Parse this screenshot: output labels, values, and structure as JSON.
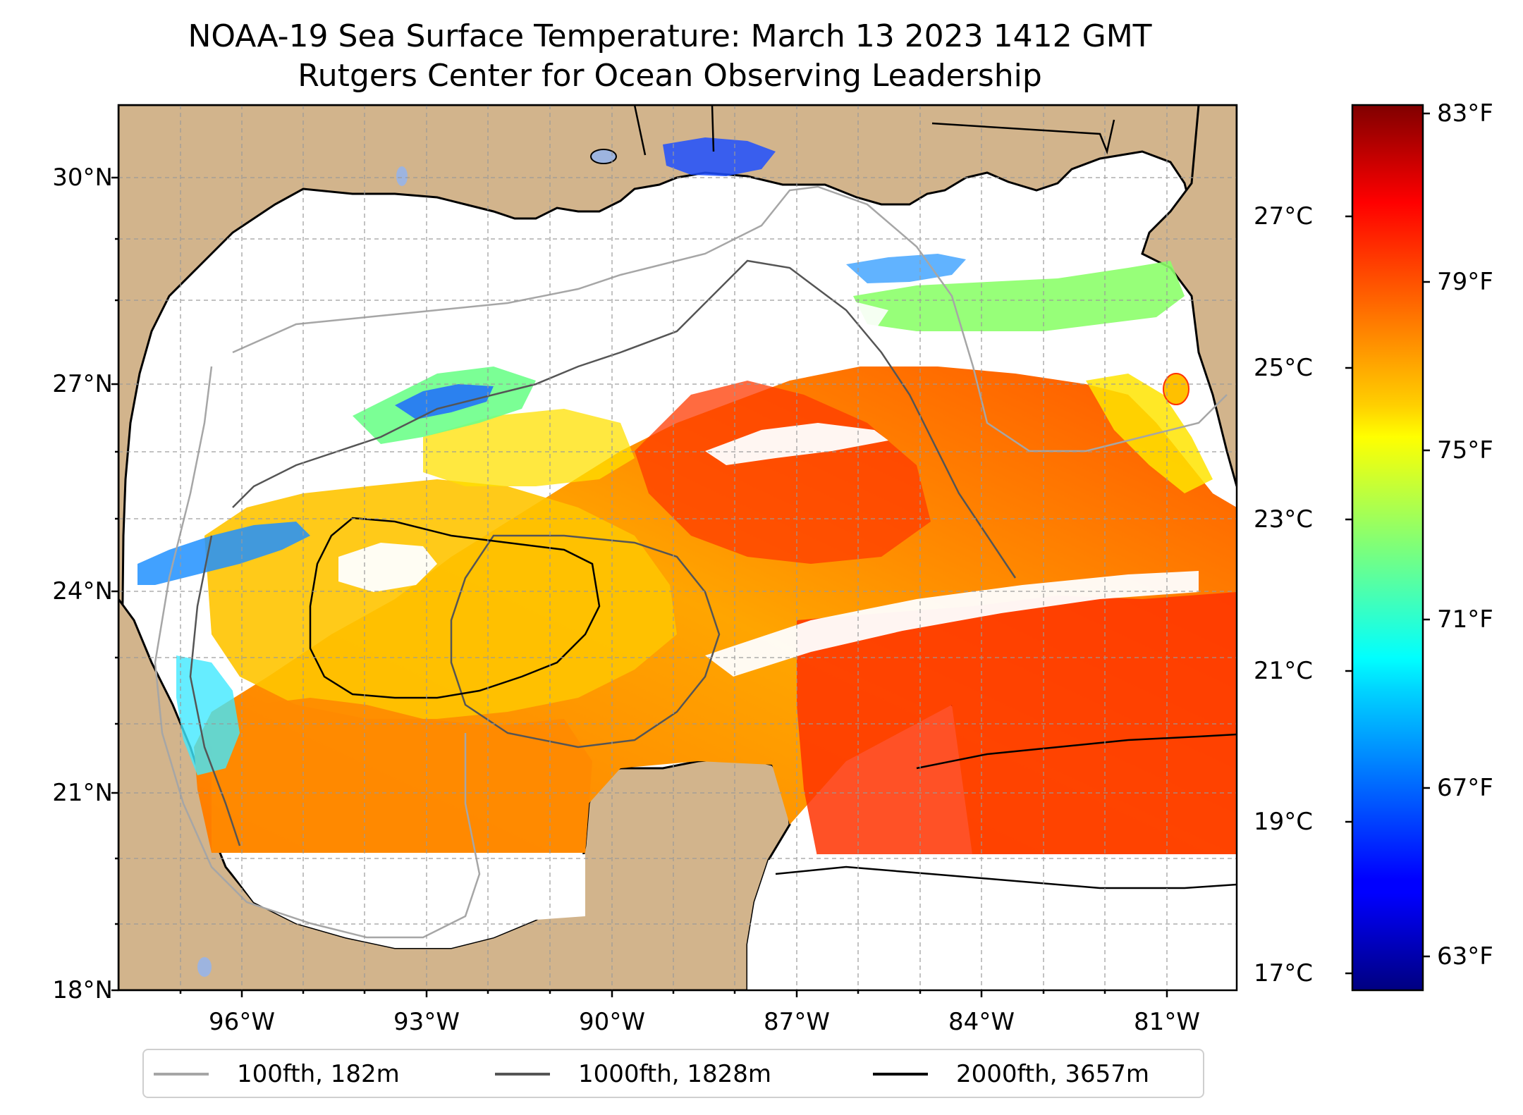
{
  "title": {
    "line1": "NOAA-19 Sea Surface Temperature: March 13 2023 1412 GMT",
    "line2": "Rutgers Center for Ocean Observing Leadership"
  },
  "axes": {
    "latitude_labels": [
      "30°N",
      "27°N",
      "24°N",
      "21°N",
      "18°N"
    ],
    "longitude_labels": [
      "96°W",
      "93°W",
      "90°W",
      "87°W",
      "84°W",
      "81°W"
    ]
  },
  "colorbar": {
    "celsius_labels": [
      "27°C",
      "25°C",
      "23°C",
      "21°C",
      "19°C",
      "17°C"
    ],
    "fahrenheit_labels": [
      "83°F",
      "79°F",
      "75°F",
      "71°F",
      "67°F",
      "63°F"
    ],
    "colormap": "jet",
    "range_celsius": [
      16.8,
      28.3
    ]
  },
  "legend": {
    "items": [
      {
        "label": "100fth, 182m",
        "color": "#a6a6a6"
      },
      {
        "label": "1000fth, 1828m",
        "color": "#555555"
      },
      {
        "label": "2000fth, 3657m",
        "color": "#000000"
      }
    ]
  },
  "colors": {
    "land": "#d2b48c",
    "cloud_no_data": "#ffffff",
    "coastline": "#000000",
    "lakes": "#9db4df"
  }
}
